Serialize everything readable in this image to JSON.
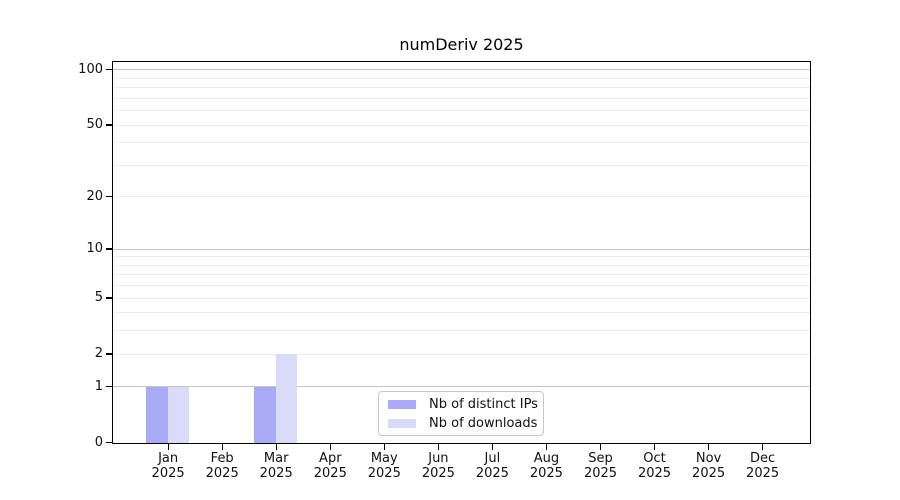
{
  "chart_data": {
    "type": "bar",
    "title": "numDeriv 2025",
    "categories": [
      "Jan",
      "Feb",
      "Mar",
      "Apr",
      "May",
      "Jun",
      "Jul",
      "Aug",
      "Sep",
      "Oct",
      "Nov",
      "Dec"
    ],
    "category_year_line": "2025",
    "series": [
      {
        "name": "Nb of distinct IPs",
        "color": "#aaaaf7",
        "values": [
          1,
          0,
          1,
          0,
          0,
          0,
          0,
          0,
          0,
          0,
          0,
          0
        ]
      },
      {
        "name": "Nb of downloads",
        "color": "#dadaf9",
        "values": [
          1,
          0,
          2,
          0,
          0,
          0,
          0,
          0,
          0,
          0,
          0,
          0
        ]
      }
    ],
    "xlabel": "",
    "ylabel": "",
    "yscale": "log10(value+1)",
    "ylim": [
      0,
      112
    ],
    "ytick_values": [
      0,
      1,
      2,
      5,
      10,
      20,
      50,
      100
    ],
    "grid": "on",
    "grid_major_values": [
      1,
      10,
      100
    ],
    "grid_minor_values": [
      2,
      3,
      4,
      5,
      6,
      7,
      8,
      9,
      20,
      30,
      40,
      50,
      60,
      70,
      80,
      90
    ],
    "legend_position": "lower center inside plot",
    "legend_entries": [
      "Nb of distinct IPs",
      "Nb of downloads"
    ]
  },
  "style": {
    "grid_major_color": "#c4c4c4",
    "grid_minor_color": "#ececec",
    "spine_color": "#000000",
    "text_color": "#111111",
    "background_color": "#ffffff"
  }
}
